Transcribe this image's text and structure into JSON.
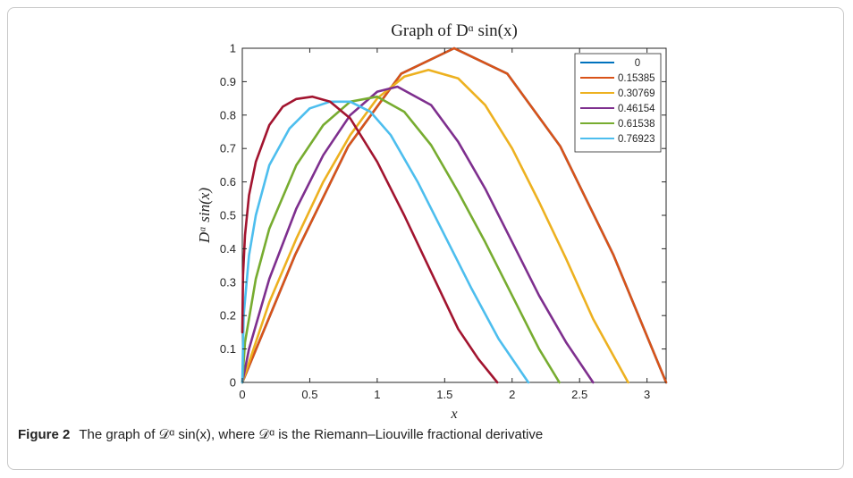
{
  "figure": {
    "caption_label": "Figure 2",
    "caption_text": "The graph of 𝒟ᵅ sin(x), where 𝒟ᵅ is the Riemann–Liouville fractional derivative"
  },
  "chart_data": {
    "type": "line",
    "title": "Graph of Dᵅ sin(x)",
    "xlabel": "x",
    "ylabel": "Dᵅ sin(x)",
    "xlim": [
      0,
      3.14159
    ],
    "ylim": [
      0,
      1
    ],
    "xticks": [
      0,
      0.5,
      1,
      1.5,
      2,
      2.5,
      3
    ],
    "xtick_labels": [
      "0",
      "0.5",
      "1",
      "1.5",
      "2",
      "2.5",
      "3"
    ],
    "yticks": [
      0,
      0.1,
      0.2,
      0.3,
      0.4,
      0.5,
      0.6,
      0.7,
      0.8,
      0.9,
      1
    ],
    "ytick_labels": [
      "0",
      "0.1",
      "0.2",
      "0.3",
      "0.4",
      "0.5",
      "0.6",
      "0.7",
      "0.8",
      "0.9",
      "1"
    ],
    "grid": false,
    "legend_position": "top-right",
    "series": [
      {
        "name": "0",
        "color": "#0072BD",
        "x": [
          0,
          0.3927,
          0.7854,
          1.1781,
          1.5708,
          1.9635,
          2.3562,
          2.7489,
          3.1416
        ],
        "y": [
          0,
          0.383,
          0.707,
          0.924,
          1.0,
          0.924,
          0.707,
          0.383,
          0
        ]
      },
      {
        "name": "0.15385",
        "color": "#D95319",
        "x": [
          0,
          0.3927,
          0.7854,
          1.1781,
          1.5708,
          1.9635,
          2.3562,
          2.7489,
          3.1416
        ],
        "y": [
          0,
          0.383,
          0.707,
          0.924,
          1.0,
          0.924,
          0.707,
          0.383,
          0
        ]
      },
      {
        "name": "0.30769",
        "color": "#EDB120",
        "x": [
          0,
          0.2,
          0.4,
          0.6,
          0.8,
          1.0,
          1.2,
          1.38,
          1.6,
          1.8,
          2.0,
          2.2,
          2.4,
          2.6,
          2.86
        ],
        "y": [
          0,
          0.24,
          0.43,
          0.6,
          0.74,
          0.85,
          0.915,
          0.935,
          0.91,
          0.83,
          0.7,
          0.54,
          0.37,
          0.19,
          0
        ]
      },
      {
        "name": "0.46154",
        "color": "#7E2F8E",
        "x": [
          0,
          0.05,
          0.2,
          0.4,
          0.6,
          0.8,
          1.0,
          1.15,
          1.4,
          1.6,
          1.8,
          2.0,
          2.2,
          2.4,
          2.6
        ],
        "y": [
          0,
          0.1,
          0.31,
          0.52,
          0.68,
          0.8,
          0.87,
          0.885,
          0.83,
          0.72,
          0.58,
          0.42,
          0.26,
          0.12,
          0
        ]
      },
      {
        "name": "0.61538",
        "color": "#77AC30",
        "x": [
          0,
          0.02,
          0.1,
          0.2,
          0.4,
          0.6,
          0.8,
          1.0,
          1.2,
          1.4,
          1.6,
          1.8,
          2.0,
          2.2,
          2.35
        ],
        "y": [
          0,
          0.12,
          0.31,
          0.46,
          0.65,
          0.77,
          0.84,
          0.855,
          0.81,
          0.71,
          0.57,
          0.42,
          0.26,
          0.1,
          0
        ]
      },
      {
        "name": "0.76923",
        "color": "#4DBEEE",
        "x": [
          0,
          0.01,
          0.05,
          0.1,
          0.2,
          0.35,
          0.5,
          0.65,
          0.8,
          0.95,
          1.1,
          1.3,
          1.5,
          1.7,
          1.9,
          2.12
        ],
        "y": [
          0,
          0.2,
          0.38,
          0.5,
          0.65,
          0.76,
          0.82,
          0.84,
          0.84,
          0.81,
          0.74,
          0.6,
          0.44,
          0.28,
          0.13,
          0
        ]
      },
      {
        "name": "",
        "color": "#A2142F",
        "x": [
          0,
          0.005,
          0.02,
          0.05,
          0.1,
          0.2,
          0.3,
          0.4,
          0.52,
          0.65,
          0.8,
          1.0,
          1.2,
          1.4,
          1.6,
          1.75,
          1.89
        ],
        "y": [
          0.15,
          0.32,
          0.44,
          0.56,
          0.66,
          0.77,
          0.825,
          0.848,
          0.855,
          0.84,
          0.79,
          0.66,
          0.5,
          0.33,
          0.16,
          0.07,
          0
        ]
      }
    ]
  }
}
